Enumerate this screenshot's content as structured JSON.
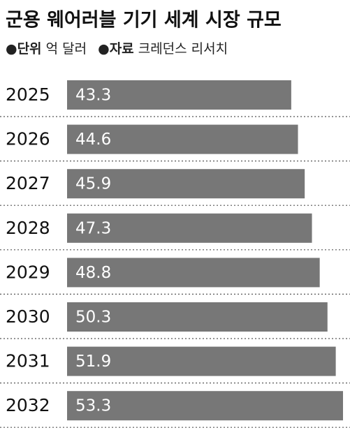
{
  "chart_data": {
    "type": "bar",
    "orientation": "horizontal",
    "title": "군용 웨어러블 기기 세계 시장 규모",
    "unit_label": "●단위",
    "unit": "억 달러",
    "source_label": "●자료",
    "source": "크레던스 리서치",
    "categories": [
      "2025",
      "2026",
      "2027",
      "2028",
      "2029",
      "2030",
      "2031",
      "2032"
    ],
    "values": [
      43.3,
      44.6,
      45.9,
      47.3,
      48.8,
      50.3,
      51.9,
      53.3
    ],
    "color": "#777777"
  }
}
